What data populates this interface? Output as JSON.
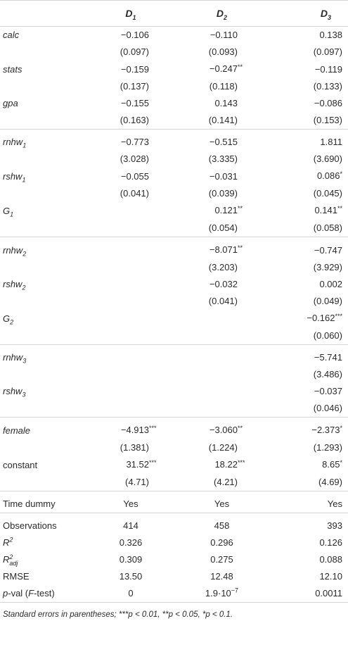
{
  "headers": {
    "d1": {
      "base": "D",
      "sub": "1"
    },
    "d2": {
      "base": "D",
      "sub": "2"
    },
    "d3": {
      "base": "D",
      "sub": "3"
    }
  },
  "rows": {
    "calc": {
      "label": "calc",
      "d1": "−0.106",
      "d2": "−0.110",
      "d3": "0.138"
    },
    "calc_se": {
      "d1": "(0.097)",
      "d2": "(0.093)",
      "d3": "(0.097)"
    },
    "stats": {
      "label": "stats",
      "d1": "−0.159",
      "d2": "−0.247",
      "d2_stars": "**",
      "d3": "−0.119"
    },
    "stats_se": {
      "d1": "(0.137)",
      "d2": "(0.118)",
      "d3": "(0.133)"
    },
    "gpa": {
      "label": "gpa",
      "d1": "−0.155",
      "d2": "0.143",
      "d3": "−0.086"
    },
    "gpa_se": {
      "d1": "(0.163)",
      "d2": "(0.141)",
      "d3": "(0.153)"
    },
    "rnhw1": {
      "label": "rnhw",
      "sub": "1",
      "d1": "−0.773",
      "d2": "−0.515",
      "d3": "1.811"
    },
    "rnhw1_se": {
      "d1": "(3.028)",
      "d2": "(3.335)",
      "d3": "(3.690)"
    },
    "rshw1": {
      "label": "rshw",
      "sub": "1",
      "d1": "−0.055",
      "d2": "−0.031",
      "d3": "0.086",
      "d3_stars": "*"
    },
    "rshw1_se": {
      "d1": "(0.041)",
      "d2": "(0.039)",
      "d3": "(0.045)"
    },
    "g1": {
      "label": "G",
      "sub": "1",
      "d2": "0.121",
      "d2_stars": "**",
      "d3": "0.141",
      "d3_stars": "**"
    },
    "g1_se": {
      "d2": "(0.054)",
      "d3": "(0.058)"
    },
    "rnhw2": {
      "label": "rnhw",
      "sub": "2",
      "d2": "−8.071",
      "d2_stars": "**",
      "d3": "−0.747"
    },
    "rnhw2_se": {
      "d2": "(3.203)",
      "d3": "(3.929)"
    },
    "rshw2": {
      "label": "rshw",
      "sub": "2",
      "d2": "−0.032",
      "d3": "0.002"
    },
    "rshw2_se": {
      "d2": "(0.041)",
      "d3": "(0.049)"
    },
    "g2": {
      "label": "G",
      "sub": "2",
      "d3": "−0.162",
      "d3_stars": "***"
    },
    "g2_se": {
      "d3": "(0.060)"
    },
    "rnhw3": {
      "label": "rnhw",
      "sub": "3",
      "d3": "−5.741"
    },
    "rnhw3_se": {
      "d3": "(3.486)"
    },
    "rshw3": {
      "label": "rshw",
      "sub": "3",
      "d3": "−0.037"
    },
    "rshw3_se": {
      "d3": "(0.046)"
    },
    "female": {
      "label": "female",
      "d1": "−4.913",
      "d1_stars": "***",
      "d2": "−3.060",
      "d2_stars": "**",
      "d3": "−2.373",
      "d3_stars": "*"
    },
    "female_se": {
      "d1": "(1.381)",
      "d2": "(1.224)",
      "d3": "(1.293)"
    },
    "constant": {
      "label": "constant",
      "d1": "31.52",
      "d1_stars": "***",
      "d2": "18.22",
      "d2_stars": "***",
      "d3": "8.65",
      "d3_stars": "*"
    },
    "constant_se": {
      "d1": "(4.71)",
      "d2": "(4.21)",
      "d3": "(4.69)"
    },
    "time": {
      "label": "Time dummy",
      "d1": "Yes",
      "d2": "Yes",
      "d3": "Yes"
    },
    "obs": {
      "label": "Observations",
      "d1": "414",
      "d2": "458",
      "d3": "393"
    },
    "r2": {
      "label": "R",
      "sup": "2",
      "d1": "0.326",
      "d2": "0.296",
      "d3": "0.126"
    },
    "r2adj": {
      "label": "R",
      "sup": "2",
      "sub": "adj",
      "d1": "0.309",
      "d2": "0.275",
      "d3": "0.088"
    },
    "rmse": {
      "label": "RMSE",
      "d1": "13.50",
      "d2": "12.48",
      "d3": "12.10"
    },
    "pval": {
      "label_p": "p",
      "label_rest": "-val (",
      "label_f": "F",
      "label_end": "-test)",
      "d1": "0",
      "d2": "1.9·10",
      "d2_sup": "−7",
      "d3": "0.0011"
    }
  },
  "footnote": "Standard errors in parentheses; ***p < 0.01, **p < 0.05, *p < 0.1."
}
